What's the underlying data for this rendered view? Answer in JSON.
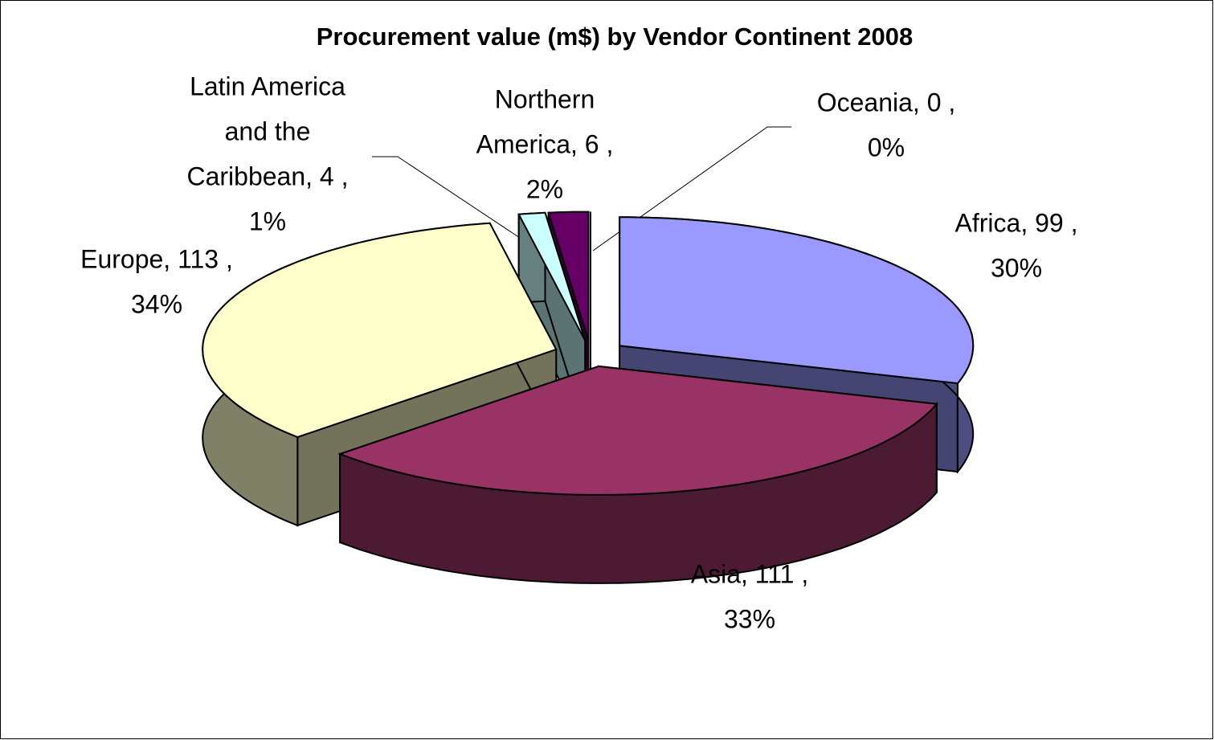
{
  "chart_data": {
    "type": "pie3d",
    "title": "Procurement value (m$) by Vendor Continent 2008",
    "categories": [
      "Africa",
      "Asia",
      "Europe",
      "Latin America and the Caribbean",
      "Northern America",
      "Oceania"
    ],
    "values": [
      99,
      111,
      113,
      4,
      6,
      0
    ],
    "value_labels": [
      [
        "Africa,  99 ,",
        "30%"
      ],
      [
        "Asia,  111 ,",
        "33%"
      ],
      [
        "Europe,  113 ,",
        "34%"
      ],
      [
        "Latin America",
        "and the",
        "Caribbean,  4 ,",
        "1%"
      ],
      [
        "Northern",
        "America,  6 ,",
        "2%"
      ],
      [
        "Oceania,  0 ,",
        "0%"
      ]
    ],
    "colors": [
      "#9999ff",
      "#993366",
      "#ffffcc",
      "#ccffff",
      "#660066",
      "#ff8080"
    ]
  }
}
